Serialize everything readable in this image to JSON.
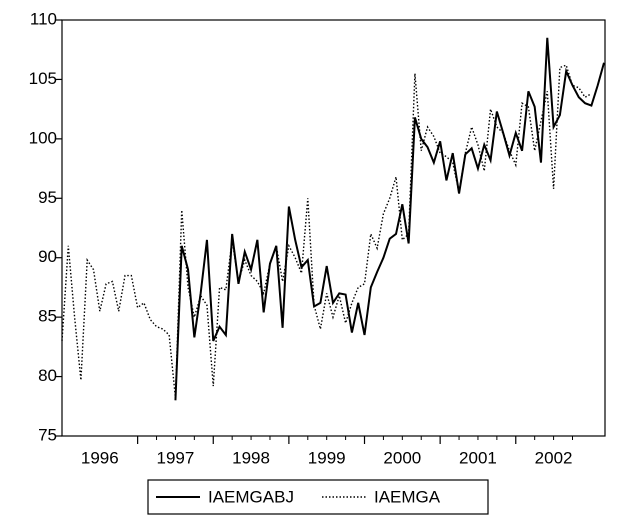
{
  "chart_data": {
    "type": "line",
    "categories": [
      null,
      null,
      null,
      null,
      null,
      null,
      "1996",
      null,
      null,
      null,
      null,
      null,
      null,
      null,
      null,
      null,
      null,
      null,
      "1997",
      null,
      null,
      null,
      null,
      null,
      null,
      null,
      null,
      null,
      null,
      null,
      "1998",
      null,
      null,
      null,
      null,
      null,
      null,
      null,
      null,
      null,
      null,
      null,
      "1999",
      null,
      null,
      null,
      null,
      null,
      null,
      null,
      null,
      null,
      null,
      null,
      "2000",
      null,
      null,
      null,
      null,
      null,
      null,
      null,
      null,
      null,
      null,
      null,
      "2001",
      null,
      null,
      null,
      null,
      null,
      null,
      null,
      null,
      null,
      null,
      null,
      "2002",
      null,
      null,
      null,
      null,
      null,
      null,
      null,
      null
    ],
    "series": [
      {
        "name": "IAEMGABJ",
        "color": "#000000",
        "line_style": "solid",
        "values": [
          null,
          null,
          null,
          null,
          null,
          null,
          null,
          null,
          null,
          null,
          null,
          null,
          null,
          null,
          null,
          null,
          null,
          null,
          78,
          91,
          89,
          83.3,
          87,
          91.5,
          83,
          84.2,
          83.5,
          92,
          87.8,
          90.5,
          89,
          91.5,
          85.4,
          89.5,
          91,
          84.1,
          94.3,
          91.5,
          89.2,
          89.8,
          85.9,
          86.2,
          89.3,
          86.2,
          87,
          86.9,
          83.7,
          86.2,
          83.5,
          87.5,
          88.8,
          90,
          91.6,
          92,
          94.5,
          91.2,
          101.8,
          100,
          99.3,
          98,
          99.8,
          96.5,
          98.8,
          95.4,
          98.7,
          99.2,
          97.5,
          99.5,
          98.2,
          102.3,
          100.5,
          98.6,
          100.5,
          99,
          104,
          102.7,
          98,
          108.5,
          101,
          102,
          105.7,
          104.5,
          103.5,
          103,
          102.8,
          104.5,
          106.4
        ]
      },
      {
        "name": "IAEMGA",
        "color": "#000000",
        "line_style": "dotted",
        "values": [
          83,
          91,
          85,
          79.7,
          89.8,
          89,
          85.5,
          87.8,
          88,
          85.5,
          88.5,
          88.5,
          85.8,
          86.2,
          84.8,
          84.2,
          84,
          83.5,
          78.2,
          94,
          87.5,
          85,
          86.8,
          86,
          79.2,
          87.5,
          87.3,
          91.5,
          88,
          89.8,
          88.5,
          88,
          87,
          89.5,
          91,
          88,
          91,
          90,
          88.7,
          95,
          86,
          84,
          87,
          85,
          86.8,
          84.5,
          86.2,
          87.5,
          87.8,
          92,
          90.8,
          93.7,
          95,
          96.8,
          91.5,
          92,
          105.5,
          99,
          101,
          100.2,
          98.8,
          98.5,
          98,
          95.5,
          98.8,
          101,
          99.5,
          97.3,
          102.5,
          101,
          100.5,
          99,
          97.8,
          103,
          102.7,
          99,
          101.5,
          104,
          95.8,
          106,
          106.2,
          104.5,
          104.3,
          103.5,
          103.8,
          null,
          null
        ]
      }
    ],
    "ylim": [
      75,
      110
    ],
    "yticks": [
      75,
      80,
      85,
      90,
      95,
      100,
      105,
      110
    ],
    "legend": "bottom"
  }
}
